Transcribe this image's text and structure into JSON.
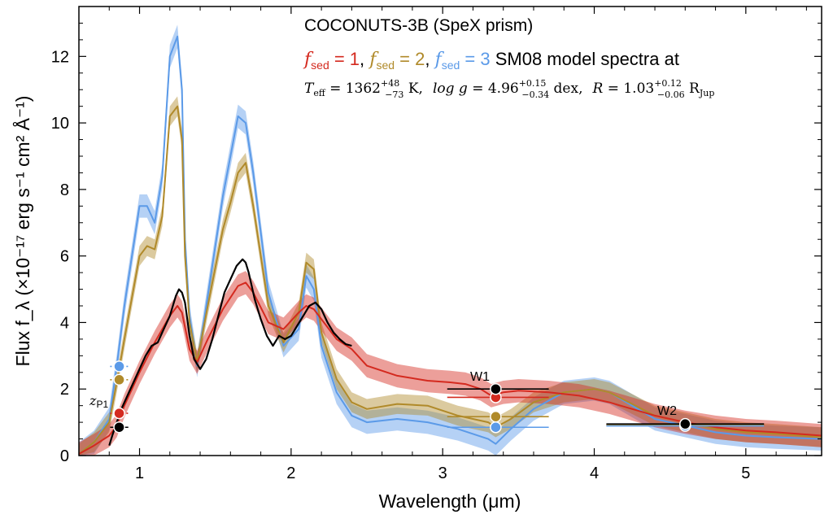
{
  "chart_data": {
    "type": "line",
    "title": "COCONUTS-3B (SpeX prism)",
    "legend_line": {
      "parts": [
        {
          "symbol": "f",
          "sub": "sed",
          "text": " = 1",
          "color": "#d42a1f"
        },
        {
          "symbol": "f",
          "sub": "sed",
          "text": " = 2",
          "color": "#b08a2a"
        },
        {
          "symbol": "f",
          "sub": "sed",
          "text": " = 3",
          "color": "#5b9ae8"
        }
      ],
      "suffix": " SM08 model spectra at"
    },
    "params_line": {
      "teff_label": "T",
      "teff_sub": "eff",
      "teff_value": " = 1362",
      "teff_up": "+48",
      "teff_low": "−73",
      "teff_unit": " K,",
      "logg_label": "log g",
      "logg_value": " = 4.96",
      "logg_up": "+0.15",
      "logg_low": "−0.34",
      "logg_unit": " dex,",
      "r_label": "R",
      "r_value": " = 1.03",
      "r_up": "+0.12",
      "r_low": "−0.06",
      "r_unit": " R",
      "r_unit_sub": "Jup"
    },
    "xlabel": "Wavelength (μm)",
    "ylabel": "Flux f_λ (×10⁻¹⁷ erg s⁻¹ cm² Å⁻¹)",
    "xlim": [
      0.6,
      5.5
    ],
    "ylim": [
      0,
      13.5
    ],
    "xticks": [
      1,
      2,
      3,
      4,
      5
    ],
    "yticks": [
      0,
      2,
      4,
      6,
      8,
      10,
      12
    ],
    "band_labels": {
      "w1": "W1",
      "w2": "W2",
      "zp1": "z",
      "zp1_sub": "P1"
    },
    "colors": {
      "black": "#000000",
      "red": "#d42a1f",
      "gold": "#b08a2a",
      "blue": "#5b9ae8"
    },
    "series": [
      {
        "name": "f_sed = 1",
        "color": "#d42a1f",
        "band_width": 0.35,
        "x": [
          0.6,
          0.7,
          0.8,
          0.85,
          0.9,
          1.0,
          1.1,
          1.2,
          1.25,
          1.28,
          1.33,
          1.38,
          1.45,
          1.55,
          1.65,
          1.7,
          1.75,
          1.85,
          1.95,
          2.05,
          2.1,
          2.15,
          2.2,
          2.3,
          2.4,
          2.5,
          2.7,
          2.9,
          3.05,
          3.15,
          3.25,
          3.32,
          3.4,
          3.5,
          3.7,
          3.9,
          4.1,
          4.4,
          4.6,
          4.8,
          5.0,
          5.2,
          5.5
        ],
        "values": [
          0.05,
          0.3,
          0.6,
          0.9,
          1.5,
          2.5,
          3.4,
          4.2,
          4.5,
          4.3,
          3.2,
          2.8,
          3.5,
          4.4,
          5.1,
          5.2,
          4.9,
          4.0,
          3.8,
          4.3,
          4.5,
          4.4,
          4.1,
          3.5,
          3.2,
          2.7,
          2.4,
          2.25,
          2.2,
          2.15,
          2.0,
          1.8,
          1.9,
          1.95,
          1.9,
          1.8,
          1.6,
          1.2,
          1.0,
          0.85,
          0.75,
          0.7,
          0.6
        ]
      },
      {
        "name": "f_sed = 2",
        "color": "#b08a2a",
        "band_width": 0.3,
        "x": [
          0.6,
          0.7,
          0.8,
          0.85,
          0.9,
          1.0,
          1.05,
          1.1,
          1.15,
          1.2,
          1.25,
          1.28,
          1.3,
          1.33,
          1.38,
          1.45,
          1.55,
          1.6,
          1.65,
          1.7,
          1.75,
          1.85,
          1.95,
          2.05,
          2.1,
          2.15,
          2.2,
          2.3,
          2.4,
          2.5,
          2.7,
          2.9,
          3.1,
          3.3,
          3.35,
          3.45,
          3.6,
          3.8,
          4.0,
          4.1,
          4.4,
          4.6,
          4.8,
          5.0,
          5.2,
          5.5
        ],
        "values": [
          0.05,
          0.4,
          1.0,
          2.2,
          3.5,
          6.0,
          6.3,
          6.2,
          7.2,
          10.2,
          10.5,
          9.5,
          6.0,
          4.0,
          2.8,
          4.5,
          6.8,
          7.6,
          8.5,
          8.8,
          7.5,
          4.5,
          3.4,
          4.3,
          5.8,
          5.6,
          3.7,
          2.3,
          1.6,
          1.4,
          1.55,
          1.5,
          1.2,
          1.0,
          0.85,
          1.1,
          1.6,
          1.9,
          2.0,
          1.9,
          1.2,
          1.0,
          0.8,
          0.7,
          0.65,
          0.55
        ]
      },
      {
        "name": "f_sed = 3",
        "color": "#5b9ae8",
        "band_width": 0.35,
        "x": [
          0.6,
          0.7,
          0.8,
          0.85,
          0.9,
          1.0,
          1.05,
          1.1,
          1.15,
          1.2,
          1.25,
          1.28,
          1.3,
          1.33,
          1.38,
          1.45,
          1.55,
          1.6,
          1.65,
          1.7,
          1.75,
          1.85,
          1.95,
          2.05,
          2.1,
          2.15,
          2.2,
          2.3,
          2.4,
          2.5,
          2.7,
          2.9,
          3.1,
          3.3,
          3.35,
          3.45,
          3.6,
          3.8,
          4.0,
          4.1,
          4.4,
          4.6,
          4.8,
          5.0,
          5.2,
          5.5
        ],
        "values": [
          0.05,
          0.4,
          1.1,
          2.7,
          4.5,
          7.5,
          7.5,
          7.0,
          8.4,
          12.0,
          12.6,
          11.0,
          6.5,
          4.2,
          2.7,
          4.8,
          7.8,
          9.0,
          10.2,
          10.0,
          8.5,
          4.9,
          3.3,
          3.8,
          5.4,
          5.0,
          3.3,
          1.9,
          1.2,
          1.0,
          1.1,
          1.0,
          0.8,
          0.5,
          0.35,
          0.8,
          1.4,
          1.9,
          2.0,
          1.9,
          1.1,
          0.9,
          0.7,
          0.6,
          0.55,
          0.5
        ]
      },
      {
        "name": "SpeX prism",
        "color": "#000000",
        "x": [
          0.8,
          0.82,
          0.85,
          0.88,
          0.92,
          0.96,
          1.0,
          1.04,
          1.08,
          1.12,
          1.16,
          1.2,
          1.24,
          1.26,
          1.28,
          1.3,
          1.33,
          1.36,
          1.4,
          1.44,
          1.48,
          1.52,
          1.56,
          1.6,
          1.64,
          1.68,
          1.7,
          1.72,
          1.76,
          1.8,
          1.84,
          1.88,
          1.92,
          1.96,
          2.0,
          2.04,
          2.08,
          2.12,
          2.16,
          2.2,
          2.24,
          2.28,
          2.32,
          2.36,
          2.4
        ],
        "values": [
          0.3,
          0.6,
          1.0,
          1.4,
          1.8,
          2.2,
          2.6,
          3.0,
          3.3,
          3.4,
          3.8,
          4.2,
          4.8,
          5.0,
          4.9,
          4.6,
          3.6,
          2.9,
          2.6,
          2.9,
          3.5,
          4.2,
          4.9,
          5.3,
          5.7,
          5.9,
          5.8,
          5.5,
          4.7,
          4.1,
          3.6,
          3.3,
          3.6,
          3.5,
          3.6,
          3.9,
          4.2,
          4.5,
          4.6,
          4.4,
          4.0,
          3.7,
          3.5,
          3.35,
          3.3
        ]
      }
    ],
    "photometry": [
      {
        "band": "zP1",
        "x": 0.866,
        "xerr": 0.06,
        "observed": 0.85,
        "model": [
          1.27,
          2.28,
          2.68
        ]
      },
      {
        "band": "W1",
        "x": 3.35,
        "xerr_lo": 0.32,
        "xerr_hi": 0.35,
        "observed": 2.0,
        "model": [
          1.75,
          1.17,
          0.85
        ]
      },
      {
        "band": "W2",
        "x": 4.6,
        "xerr_lo": 0.52,
        "xerr_hi": 0.52,
        "observed": 0.95,
        "model": [
          0.93,
          0.91,
          0.89
        ]
      }
    ]
  }
}
